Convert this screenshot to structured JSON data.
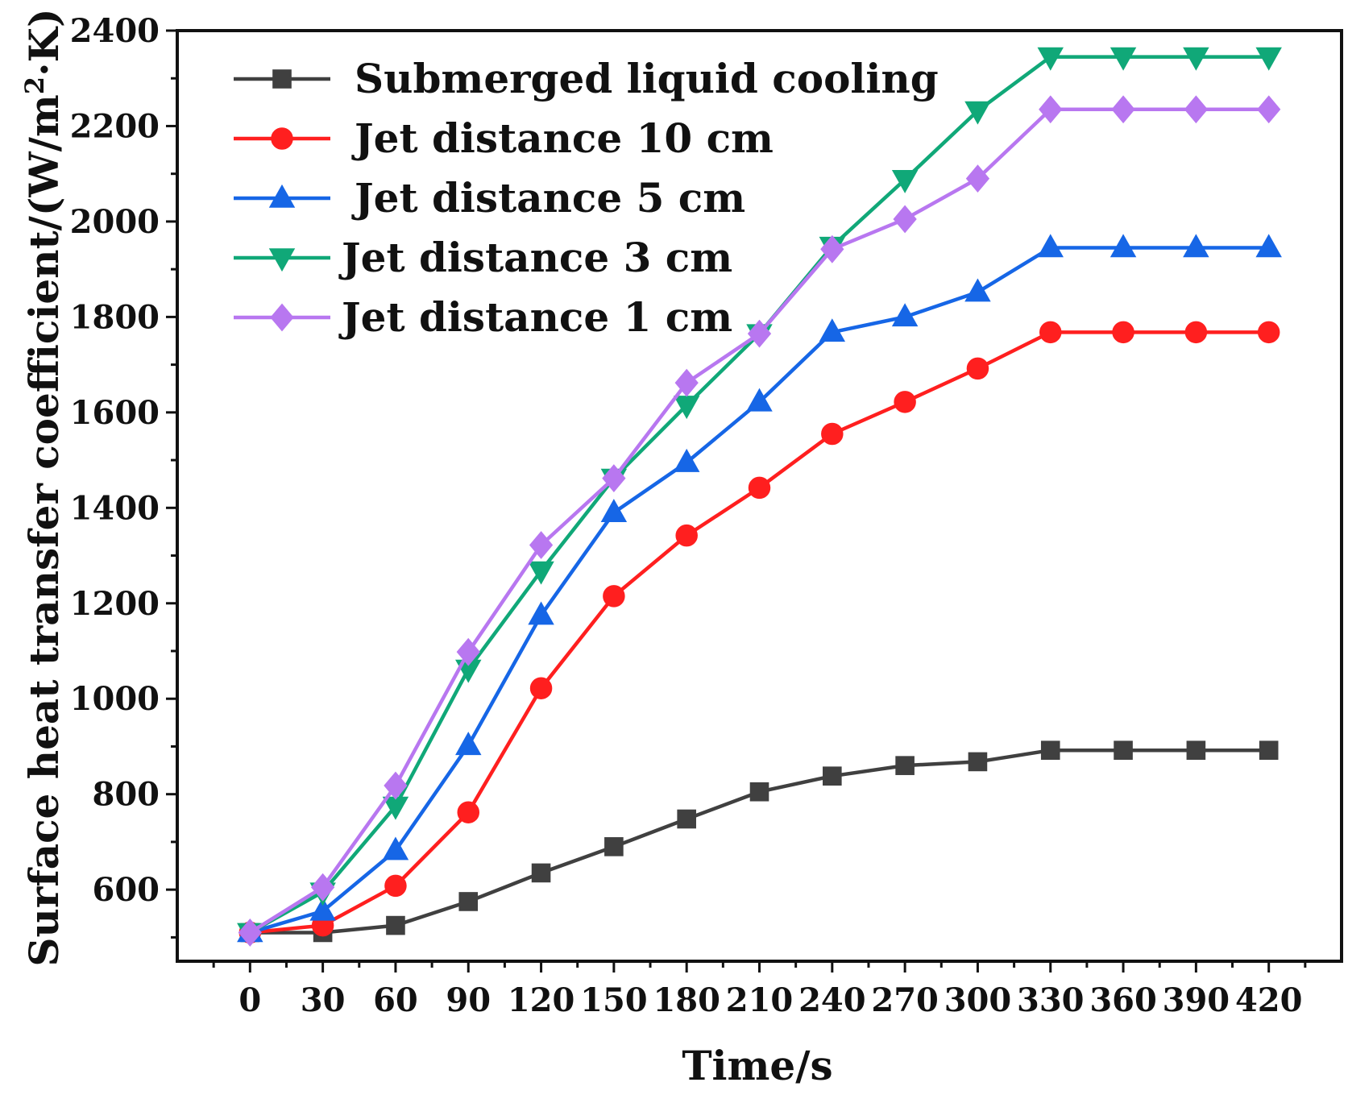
{
  "chart_data": {
    "type": "line",
    "title": "",
    "xlabel": "Time/s",
    "ylabel_prefix": "Surface heat transfer coefficient/(W/m",
    "ylabel_superscript": "2",
    "ylabel_suffix": "·K)",
    "x": [
      0,
      30,
      60,
      90,
      120,
      150,
      180,
      210,
      240,
      270,
      300,
      330,
      360,
      390,
      420
    ],
    "x_ticks": [
      "0",
      "30",
      "60",
      "90",
      "120",
      "150",
      "180",
      "210",
      "240",
      "270",
      "300",
      "330",
      "360",
      "390",
      "420"
    ],
    "xlim": [
      -30,
      450
    ],
    "ylim": [
      450,
      2400
    ],
    "y_ticks": [
      600,
      800,
      1000,
      1200,
      1400,
      1600,
      1800,
      2000,
      2200,
      2400
    ],
    "legend_position": "top-left",
    "grid": false,
    "series": [
      {
        "name": "Submerged liquid cooling",
        "color": "#404040",
        "marker": "square",
        "values": [
          510,
          510,
          525,
          575,
          635,
          690,
          748,
          805,
          838,
          860,
          868,
          892,
          892,
          892,
          892
        ]
      },
      {
        "name": "Jet distance 10 cm",
        "color": "#ff1f1f",
        "marker": "circle",
        "values": [
          510,
          525,
          608,
          762,
          1022,
          1215,
          1342,
          1442,
          1555,
          1622,
          1692,
          1768,
          1768,
          1768,
          1768
        ]
      },
      {
        "name": "Jet distance 5 cm",
        "color": "#1666e6",
        "marker": "triangle-up",
        "values": [
          510,
          555,
          682,
          902,
          1175,
          1390,
          1495,
          1622,
          1768,
          1800,
          1852,
          1945,
          1945,
          1945,
          1945
        ]
      },
      {
        "name": "Jet distance 3 cm",
        "color": "#10a878",
        "marker": "triangle-down",
        "values": [
          510,
          595,
          775,
          1062,
          1268,
          1462,
          1615,
          1765,
          1948,
          2088,
          2232,
          2345,
          2345,
          2345,
          2345
        ]
      },
      {
        "name": "Jet distance 1 cm",
        "color": "#b877f0",
        "marker": "diamond",
        "values": [
          510,
          605,
          818,
          1098,
          1322,
          1462,
          1662,
          1765,
          1942,
          2005,
          2090,
          2235,
          2235,
          2235,
          2235
        ]
      }
    ]
  }
}
